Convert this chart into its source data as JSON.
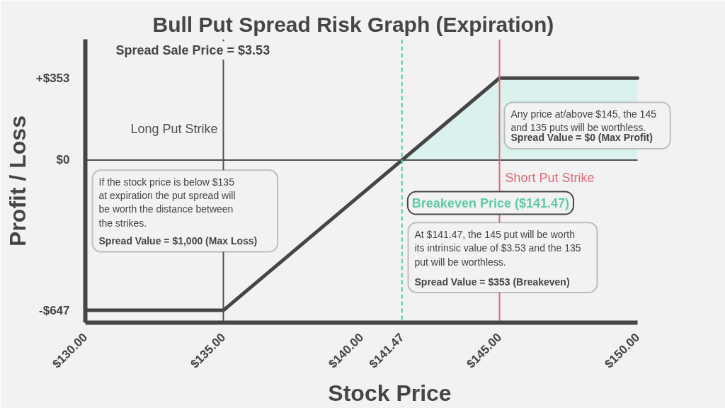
{
  "chart_data": {
    "type": "line",
    "title": "Bull Put Spread Risk Graph (Expiration)",
    "xlabel": "Stock Price",
    "ylabel": "Profit / Loss",
    "xlim": [
      130,
      150
    ],
    "ylim": [
      -700,
      520
    ],
    "xticks": [
      {
        "value": 130,
        "label": "$130.00"
      },
      {
        "value": 135,
        "label": "$135.00"
      },
      {
        "value": 140,
        "label": "$140.00"
      },
      {
        "value": 141.47,
        "label": "$141.47"
      },
      {
        "value": 145,
        "label": "$145.00"
      },
      {
        "value": 150,
        "label": "$150.00"
      }
    ],
    "yticks": [
      {
        "value": 353,
        "label": "+$353"
      },
      {
        "value": 0,
        "label": "$0"
      },
      {
        "value": -647,
        "label": "-$647"
      }
    ],
    "series": [
      {
        "type": "area",
        "color": "#dbf1ee",
        "x": [
          141.47,
          145,
          150
        ],
        "values": [
          0,
          353,
          353
        ]
      },
      {
        "color": "#454545",
        "x": [
          130,
          135,
          145,
          150
        ],
        "values": [
          -647,
          -647,
          353,
          353
        ]
      }
    ],
    "ref_lines": [
      {
        "axis": "y",
        "value": 0,
        "color": "#505050"
      },
      {
        "axis": "x",
        "value": 135,
        "label": "Long Put Strike",
        "color": "#505050"
      },
      {
        "axis": "x",
        "value": 141.47,
        "label": "Breakeven Price ($141.47)",
        "color": "#5ecba9",
        "line_style": "dashed"
      },
      {
        "axis": "x",
        "value": 145,
        "label": "Short Put Strike",
        "color": "#e06a7a"
      }
    ],
    "annotations": [
      "Spread Sale Price = $3.53",
      "If the stock price is below $135\nat expiration the put spread will\nbe worth the distance between\nthe strikes.",
      "Spread Value = $1,000 (Max Loss)",
      "Any price at/above $145, the 145\nand 135 puts will be worthless.",
      "Spread Value = $0 (Max Profit)",
      "At $141.47, the 145 put will be worth\nits intrinsic value of $3.53 and the 135\nput will be worthless.",
      "Spread Value = $353 (Breakeven)"
    ]
  }
}
